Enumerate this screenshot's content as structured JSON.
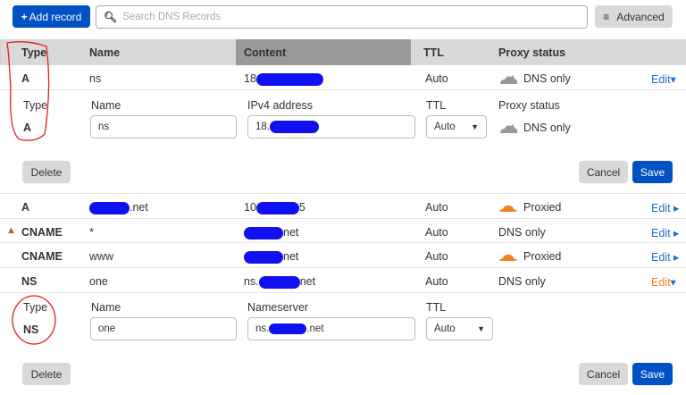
{
  "toolbar": {
    "add_record": "Add record",
    "search_placeholder": "Search DNS Records",
    "advanced": "Advanced"
  },
  "columns": {
    "type": "Type",
    "name": "Name",
    "content": "Content",
    "ttl": "TTL",
    "proxy": "Proxy status"
  },
  "records": [
    {
      "type": "A",
      "name": "ns",
      "content_prefix": "18.",
      "content_suffix": "",
      "ttl": "Auto",
      "proxy": "DNS only",
      "proxy_icon": "cloud-gray",
      "edit": "Edit",
      "expanded": true
    },
    {
      "type": "A",
      "name_prefix": "",
      "name_suffix": ".net",
      "content_prefix": "10",
      "content_suffix": "5",
      "ttl": "Auto",
      "proxy": "Proxied",
      "proxy_icon": "cloud-orange",
      "edit": "Edit"
    },
    {
      "type": "CNAME",
      "name": "*",
      "content_prefix": "",
      "content_suffix": "net",
      "ttl": "Auto",
      "proxy": "DNS only",
      "edit": "Edit",
      "warning": true
    },
    {
      "type": "CNAME",
      "name": "www",
      "content_prefix": "",
      "content_suffix": "net",
      "ttl": "Auto",
      "proxy": "Proxied",
      "proxy_icon": "cloud-orange",
      "edit": "Edit"
    },
    {
      "type": "NS",
      "name": "one",
      "content_prefix": "ns.",
      "content_suffix": "net",
      "ttl": "Auto",
      "proxy": "DNS only",
      "edit": "Edit",
      "expanded": true
    }
  ],
  "edit_a": {
    "type_label": "Type",
    "type": "A",
    "name_label": "Name",
    "name_value": "ns",
    "content_label": "IPv4 address",
    "content_value": "18.",
    "ttl_label": "TTL",
    "ttl_value": "Auto",
    "proxy_label": "Proxy status",
    "proxy": "DNS only",
    "delete": "Delete",
    "cancel": "Cancel",
    "save": "Save"
  },
  "edit_ns": {
    "type_label": "Type",
    "type": "NS",
    "name_label": "Name",
    "name_value": "one",
    "content_label": "Nameserver",
    "content_prefix": "ns.",
    "content_suffix": ".net",
    "ttl_label": "TTL",
    "ttl_value": "Auto",
    "delete": "Delete",
    "cancel": "Cancel",
    "save": "Save"
  },
  "colors": {
    "primary": "#0051c3",
    "link": "#1f6fd0",
    "link_active": "#f38020",
    "proxied": "#f38020",
    "annotation": "#e02020",
    "redaction": "#1010f0"
  }
}
